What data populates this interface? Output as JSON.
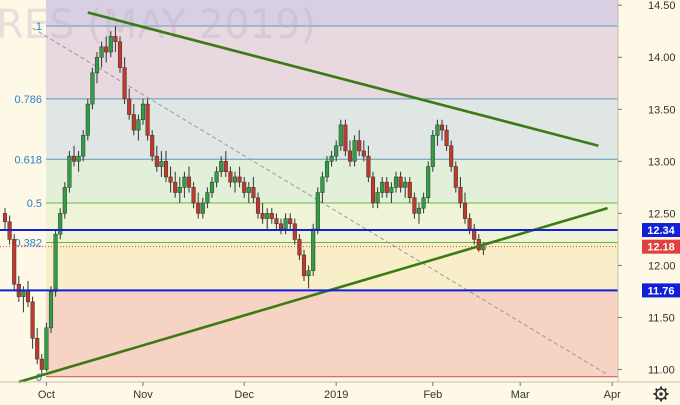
{
  "watermark": "RES (MAY 2019)",
  "icons": {
    "settings": "gear-icon"
  },
  "colors": {
    "background": "#fdf9e6",
    "up_candle": "#2ea043",
    "down_candle": "#c0392b",
    "trendline": "#3c7a16",
    "level_line": "#1020d8",
    "price_tag": "#1020d8",
    "current_tag": "#e04040",
    "diagonal": "#999999"
  },
  "chart_data": {
    "type": "candlestick",
    "title": "",
    "xlabel": "",
    "ylabel": "",
    "ylim": [
      10.88,
      14.55
    ],
    "y_ticks": [
      "11.00",
      "11.50",
      "12.00",
      "12.50",
      "13.00",
      "13.50",
      "14.00",
      "14.50"
    ],
    "x_ticks": [
      "Oct",
      "Nov",
      "Dec",
      "2019",
      "Feb",
      "Mar",
      "Apr"
    ],
    "x_tick_bars": [
      9,
      30,
      52,
      72,
      93,
      112,
      132
    ],
    "fib_levels": [
      {
        "label": "1",
        "price": 14.3,
        "fill": "#e8d8e0"
      },
      {
        "label": "0.786",
        "price": 13.6,
        "fill": "#dfe6e3"
      },
      {
        "label": "0.618",
        "price": 13.02,
        "fill": "#e2efd9"
      },
      {
        "label": "0.5",
        "price": 12.6,
        "fill": "#eef4d5"
      },
      {
        "label": "0.382",
        "price": 12.22,
        "fill": "#f8eec8"
      },
      {
        "label": "",
        "price": 11.76,
        "fill": "#f6d3c3"
      },
      {
        "label": "0",
        "price": 10.93,
        "fill": ""
      }
    ],
    "horizontal_levels": [
      12.34,
      11.76
    ],
    "price_tags": [
      {
        "text": "12.34",
        "price": 12.34,
        "kind": "level"
      },
      {
        "text": "12.18",
        "price": 12.18,
        "kind": "current"
      },
      {
        "text": "11.76",
        "price": 11.76,
        "kind": "level"
      }
    ],
    "current_price": 12.18,
    "trendlines": [
      {
        "from": [
          18,
          14.43
        ],
        "to": [
          129,
          13.15
        ]
      },
      {
        "from": [
          3,
          10.88
        ],
        "to": [
          131,
          12.55
        ]
      }
    ],
    "diagonal_dashed": {
      "from": [
        6,
        14.28
      ],
      "to": [
        131,
        10.95
      ]
    },
    "candles": [
      [
        12.5,
        12.55,
        12.35,
        12.42
      ],
      [
        12.42,
        12.48,
        12.2,
        12.25
      ],
      [
        12.25,
        12.3,
        11.75,
        11.82
      ],
      [
        11.82,
        11.9,
        11.65,
        11.7
      ],
      [
        11.7,
        11.8,
        11.55,
        11.75
      ],
      [
        11.75,
        11.85,
        11.6,
        11.65
      ],
      [
        11.65,
        11.7,
        11.2,
        11.3
      ],
      [
        11.3,
        11.4,
        11.05,
        11.1
      ],
      [
        11.1,
        11.15,
        10.95,
        11.0
      ],
      [
        11.0,
        11.45,
        10.98,
        11.4
      ],
      [
        11.4,
        11.8,
        11.35,
        11.75
      ],
      [
        11.75,
        12.35,
        11.7,
        12.3
      ],
      [
        12.3,
        12.55,
        12.25,
        12.5
      ],
      [
        12.5,
        12.8,
        12.45,
        12.75
      ],
      [
        12.75,
        13.1,
        12.7,
        13.05
      ],
      [
        13.05,
        13.15,
        12.95,
        13.0
      ],
      [
        13.0,
        13.1,
        12.9,
        13.05
      ],
      [
        13.05,
        13.3,
        13.0,
        13.25
      ],
      [
        13.25,
        13.6,
        13.2,
        13.55
      ],
      [
        13.55,
        13.9,
        13.5,
        13.85
      ],
      [
        13.85,
        14.05,
        13.75,
        14.0
      ],
      [
        14.0,
        14.15,
        13.9,
        14.1
      ],
      [
        14.1,
        14.2,
        13.95,
        14.05
      ],
      [
        14.05,
        14.25,
        14.0,
        14.2
      ],
      [
        14.2,
        14.3,
        14.05,
        14.15
      ],
      [
        14.15,
        14.2,
        13.85,
        13.9
      ],
      [
        13.9,
        14.0,
        13.55,
        13.6
      ],
      [
        13.6,
        13.7,
        13.4,
        13.45
      ],
      [
        13.45,
        13.55,
        13.25,
        13.3
      ],
      [
        13.3,
        13.45,
        13.2,
        13.4
      ],
      [
        13.4,
        13.6,
        13.35,
        13.55
      ],
      [
        13.55,
        13.6,
        13.2,
        13.25
      ],
      [
        13.25,
        13.3,
        13.0,
        13.05
      ],
      [
        13.05,
        13.15,
        12.9,
        12.95
      ],
      [
        12.95,
        13.1,
        12.85,
        13.0
      ],
      [
        13.0,
        13.1,
        12.8,
        12.85
      ],
      [
        12.85,
        12.95,
        12.7,
        12.8
      ],
      [
        12.8,
        12.9,
        12.65,
        12.7
      ],
      [
        12.7,
        12.85,
        12.6,
        12.75
      ],
      [
        12.75,
        12.9,
        12.65,
        12.85
      ],
      [
        12.85,
        12.95,
        12.7,
        12.75
      ],
      [
        12.75,
        12.8,
        12.55,
        12.6
      ],
      [
        12.6,
        12.7,
        12.45,
        12.5
      ],
      [
        12.5,
        12.65,
        12.45,
        12.6
      ],
      [
        12.6,
        12.75,
        12.55,
        12.7
      ],
      [
        12.7,
        12.85,
        12.65,
        12.8
      ],
      [
        12.8,
        12.95,
        12.75,
        12.9
      ],
      [
        12.9,
        13.05,
        12.85,
        13.0
      ],
      [
        13.0,
        13.1,
        12.85,
        12.9
      ],
      [
        12.9,
        12.95,
        12.75,
        12.8
      ],
      [
        12.8,
        12.9,
        12.7,
        12.85
      ],
      [
        12.85,
        12.95,
        12.75,
        12.8
      ],
      [
        12.8,
        12.85,
        12.65,
        12.7
      ],
      [
        12.7,
        12.8,
        12.6,
        12.75
      ],
      [
        12.75,
        12.85,
        12.6,
        12.65
      ],
      [
        12.65,
        12.7,
        12.45,
        12.5
      ],
      [
        12.5,
        12.6,
        12.4,
        12.45
      ],
      [
        12.45,
        12.55,
        12.35,
        12.5
      ],
      [
        12.5,
        12.55,
        12.4,
        12.45
      ],
      [
        12.45,
        12.5,
        12.35,
        12.4
      ],
      [
        12.4,
        12.45,
        12.3,
        12.35
      ],
      [
        12.35,
        12.5,
        12.3,
        12.45
      ],
      [
        12.45,
        12.5,
        12.35,
        12.4
      ],
      [
        12.4,
        12.45,
        12.2,
        12.25
      ],
      [
        12.25,
        12.3,
        12.05,
        12.1
      ],
      [
        12.1,
        12.15,
        11.85,
        11.9
      ],
      [
        11.9,
        12.0,
        11.78,
        11.95
      ],
      [
        11.95,
        12.4,
        11.9,
        12.35
      ],
      [
        12.35,
        12.75,
        12.3,
        12.7
      ],
      [
        12.7,
        12.9,
        12.6,
        12.85
      ],
      [
        12.85,
        13.05,
        12.8,
        13.0
      ],
      [
        13.0,
        13.1,
        12.95,
        13.05
      ],
      [
        13.05,
        13.2,
        13.0,
        13.15
      ],
      [
        13.15,
        13.4,
        13.1,
        13.35
      ],
      [
        13.35,
        13.4,
        13.05,
        13.1
      ],
      [
        13.1,
        13.2,
        12.95,
        13.0
      ],
      [
        13.0,
        13.25,
        12.95,
        13.2
      ],
      [
        13.2,
        13.3,
        13.05,
        13.1
      ],
      [
        13.1,
        13.2,
        13.0,
        13.05
      ],
      [
        13.05,
        13.15,
        12.8,
        12.85
      ],
      [
        12.85,
        12.9,
        12.55,
        12.6
      ],
      [
        12.6,
        12.75,
        12.55,
        12.7
      ],
      [
        12.7,
        12.85,
        12.65,
        12.8
      ],
      [
        12.8,
        12.85,
        12.65,
        12.7
      ],
      [
        12.7,
        12.8,
        12.6,
        12.75
      ],
      [
        12.75,
        12.9,
        12.7,
        12.85
      ],
      [
        12.85,
        12.9,
        12.7,
        12.75
      ],
      [
        12.75,
        12.85,
        12.65,
        12.8
      ],
      [
        12.8,
        12.85,
        12.6,
        12.65
      ],
      [
        12.65,
        12.7,
        12.45,
        12.5
      ],
      [
        12.5,
        12.6,
        12.4,
        12.55
      ],
      [
        12.55,
        12.7,
        12.5,
        12.65
      ],
      [
        12.65,
        13.0,
        12.6,
        12.95
      ],
      [
        12.95,
        13.3,
        12.9,
        13.25
      ],
      [
        13.25,
        13.4,
        13.15,
        13.35
      ],
      [
        13.35,
        13.4,
        13.2,
        13.3
      ],
      [
        13.3,
        13.35,
        13.1,
        13.15
      ],
      [
        13.15,
        13.2,
        12.9,
        12.95
      ],
      [
        12.95,
        13.0,
        12.7,
        12.75
      ],
      [
        12.75,
        12.85,
        12.55,
        12.6
      ],
      [
        12.6,
        12.7,
        12.4,
        12.45
      ],
      [
        12.45,
        12.5,
        12.3,
        12.35
      ],
      [
        12.35,
        12.4,
        12.2,
        12.25
      ],
      [
        12.25,
        12.3,
        12.13,
        12.15
      ],
      [
        12.15,
        12.22,
        12.1,
        12.18
      ]
    ]
  }
}
